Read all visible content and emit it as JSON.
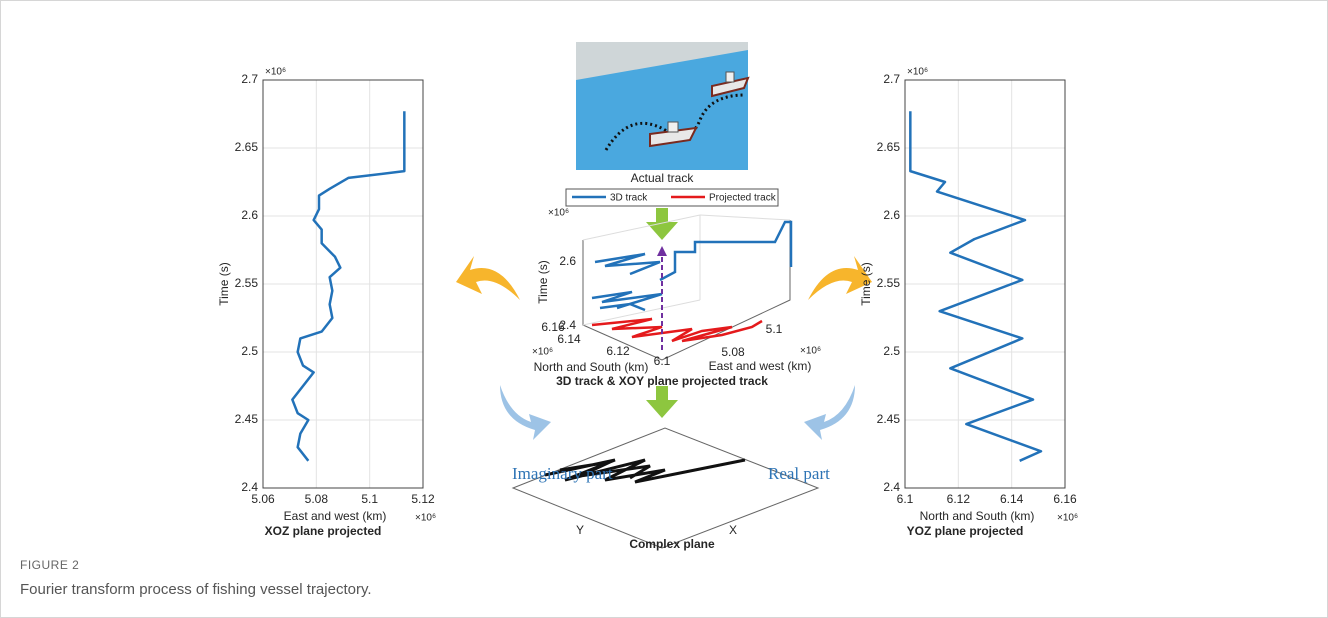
{
  "chart_data": [
    {
      "type": "line",
      "title": "XOZ plane projected",
      "x_label": "East and west (km)",
      "y_label": "Time (s)",
      "x_exponent": "×10⁶",
      "y_exponent": "×10⁶",
      "xlim": [
        5.06,
        5.12
      ],
      "xticks": [
        5.06,
        5.08,
        5.1,
        5.12
      ],
      "ylim": [
        2.4,
        2.7
      ],
      "yticks": [
        2.4,
        2.45,
        2.5,
        2.55,
        2.6,
        2.65,
        2.7
      ],
      "grid": true,
      "series": [
        {
          "color": "#2272b9",
          "x": [
            5.077,
            5.073,
            5.074,
            5.077,
            5.073,
            5.071,
            5.075,
            5.079,
            5.075,
            5.073,
            5.074,
            5.082,
            5.086,
            5.085,
            5.086,
            5.085,
            5.089,
            5.087,
            5.082,
            5.082,
            5.079,
            5.081,
            5.081,
            5.085,
            5.092,
            5.113,
            5.113
          ],
          "values": [
            2.42,
            2.43,
            2.44,
            2.45,
            2.455,
            2.465,
            2.475,
            2.485,
            2.49,
            2.5,
            2.51,
            2.515,
            2.525,
            2.535,
            2.545,
            2.555,
            2.562,
            2.57,
            2.58,
            2.59,
            2.597,
            2.605,
            2.615,
            2.62,
            2.628,
            2.633,
            2.677
          ]
        }
      ]
    },
    {
      "type": "line",
      "title": "YOZ plane projected",
      "x_label": "North and South (km)",
      "y_label": "Time (s)",
      "x_exponent": "×10⁶",
      "y_exponent": "×10⁶",
      "xlim": [
        6.1,
        6.16
      ],
      "xticks": [
        6.1,
        6.12,
        6.14,
        6.16
      ],
      "ylim": [
        2.4,
        2.7
      ],
      "yticks": [
        2.4,
        2.45,
        2.5,
        2.55,
        2.6,
        2.65,
        2.7
      ],
      "grid": true,
      "series": [
        {
          "color": "#2272b9",
          "x": [
            6.143,
            6.151,
            6.123,
            6.148,
            6.117,
            6.144,
            6.113,
            6.144,
            6.117,
            6.126,
            6.145,
            6.112,
            6.115,
            6.102,
            6.102
          ],
          "values": [
            2.42,
            2.427,
            2.447,
            2.465,
            2.488,
            2.51,
            2.53,
            2.553,
            2.573,
            2.583,
            2.597,
            2.618,
            2.625,
            2.633,
            2.677
          ]
        }
      ]
    }
  ],
  "center": {
    "photo_caption": "Actual track",
    "legend": [
      "3D track",
      "Projected track"
    ],
    "plot3d": {
      "title": "3D track & XOY plane projected track",
      "z_label": "Time (s)",
      "z_ticks": [
        2.6,
        2.4
      ],
      "z_exponent": "×10⁶",
      "y_label": "North and South (km)",
      "y_ticks": [
        6.16,
        6.14,
        6.12,
        6.1
      ],
      "y_exponent": "×10⁶",
      "x_label": "East and west (km)",
      "x_ticks": [
        5.08,
        5.1
      ],
      "x_exponent": "×10⁶"
    },
    "complex_plane": {
      "title": "Complex plane",
      "imaginary": "Imaginary part",
      "real": "Real part",
      "y_axis": "Y",
      "x_axis": "X"
    }
  },
  "caption": {
    "label": "FIGURE 2",
    "text": "Fourier transform process of fishing vessel trajectory."
  }
}
